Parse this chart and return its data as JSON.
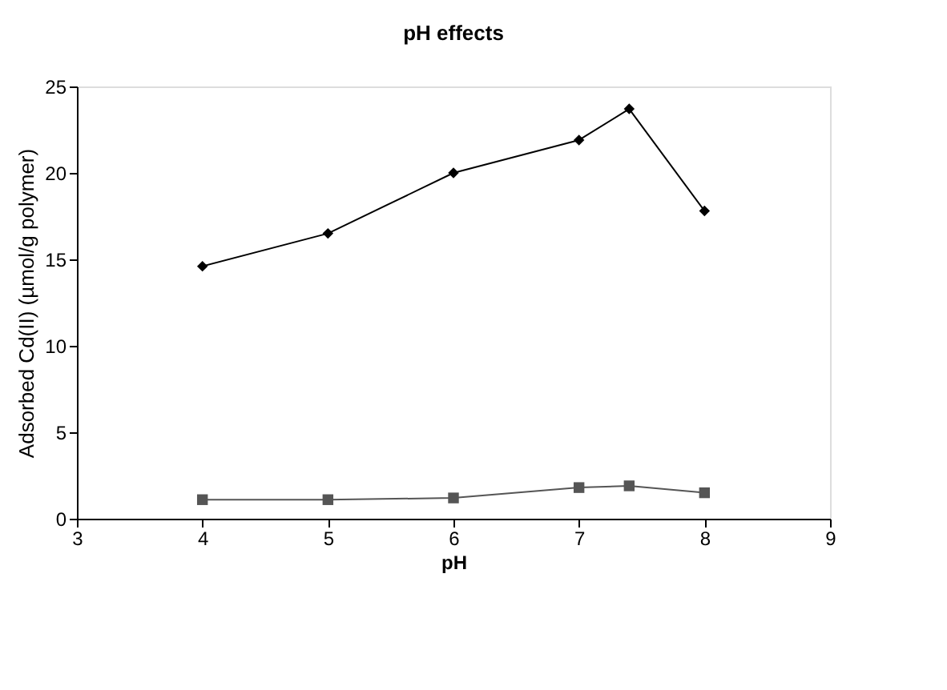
{
  "chart_data": {
    "type": "line",
    "title": "pH effects",
    "xlabel": "pH",
    "ylabel": "Adsorbed Cd(II) (µmol/g polymer)",
    "x": [
      4,
      5,
      6,
      7,
      7.4,
      8
    ],
    "series": [
      {
        "color": "#000000",
        "marker": "diamond",
        "values": [
          14.6,
          16.5,
          20,
          21.9,
          23.7,
          17.8
        ]
      },
      {
        "color": "#555555",
        "marker": "square",
        "values": [
          1.1,
          1.1,
          1.2,
          1.8,
          1.9,
          1.5
        ]
      }
    ],
    "xlim": [
      3,
      9
    ],
    "xticks": [
      3,
      4,
      5,
      6,
      7,
      8,
      9
    ],
    "ylim": [
      0,
      25
    ],
    "yticks": [
      0,
      5,
      10,
      15,
      20,
      25
    ],
    "grid": false,
    "line_style": "solid"
  }
}
